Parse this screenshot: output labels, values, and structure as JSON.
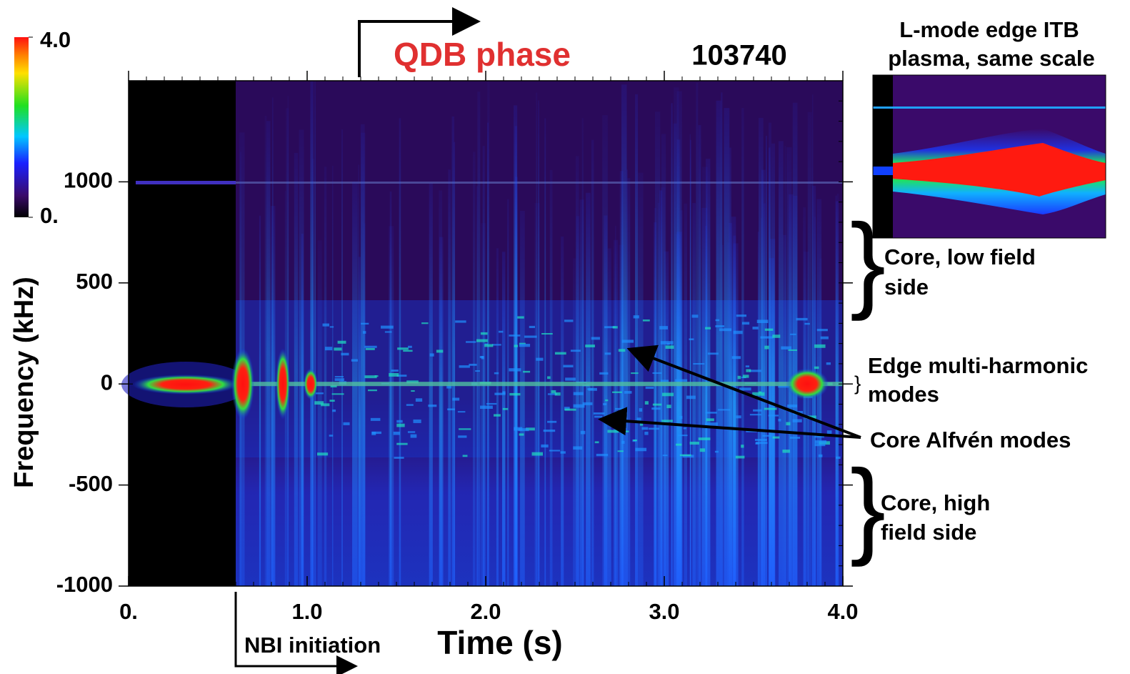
{
  "chart_data": {
    "type": "spectrogram",
    "shot": "103740",
    "x_label": "Time (s)",
    "y_label": "Frequency (kHz)",
    "xlim": [
      0,
      4
    ],
    "ylim": [
      -1000,
      1500
    ],
    "xticks": [
      {
        "value": 0,
        "label": "0."
      },
      {
        "value": 1,
        "label": "1.0"
      },
      {
        "value": 2,
        "label": "2.0"
      },
      {
        "value": 3,
        "label": "3.0"
      },
      {
        "value": 4,
        "label": "4.0"
      }
    ],
    "yticks": [
      -1000,
      -500,
      0,
      500,
      1000
    ],
    "colorbar": {
      "range": [
        0,
        4
      ],
      "ticks": [
        {
          "value": 0,
          "label": "0."
        },
        {
          "value": 4,
          "label": "4.0"
        }
      ]
    },
    "annotations": {
      "qdb_phase": "QDB phase",
      "nbi_initiation": "NBI initiation",
      "inset_title": [
        "L-mode edge ITB",
        "plasma, same scale"
      ],
      "core_low_field": [
        "Core, low field",
        "side"
      ],
      "edge_modes": [
        "Edge multi-harmonic",
        "modes"
      ],
      "alfven": "Core Alfvén modes",
      "core_high_field": [
        "Core, high",
        "field side"
      ]
    }
  }
}
